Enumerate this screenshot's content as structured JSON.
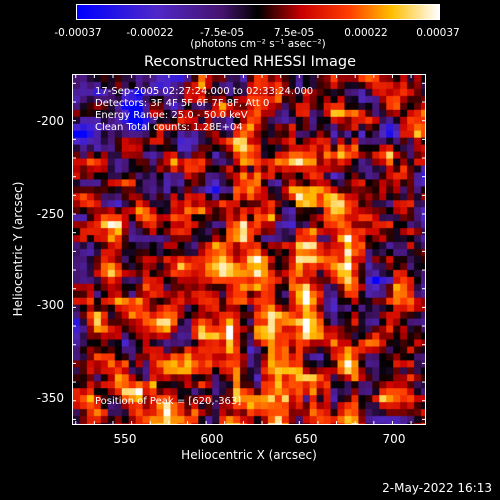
{
  "chart_data": {
    "type": "heatmap",
    "title": "Reconstructed RHESSI Image",
    "xlabel": "Heliocentric X (arcsec)",
    "ylabel": "Heliocentric Y (arcsec)",
    "xlim": [
      523,
      713
    ],
    "ylim": [
      -368,
      -180
    ],
    "x_ticks": [
      "550",
      "600",
      "650",
      "700"
    ],
    "y_ticks": [
      "-200",
      "-250",
      "-300",
      "-350"
    ],
    "colorbar": {
      "ticks": [
        "-0.00037",
        "-0.00022",
        "-7.5e-05",
        "7.5e-05",
        "0.00022",
        "0.00037"
      ],
      "units_label": "(photons cm⁻² s⁻¹ asec⁻²)",
      "range": [
        -0.00037,
        0.00037
      ]
    },
    "annotations": [
      "17-Sep-2005 02:27:24.000 to 02:33:24.000",
      "Detectors: 3F 4F 5F 6F 7F 8F, Att 0",
      "Energy Range: 25.0 - 50.0 keV",
      "Clean     Total counts: 1.28E+04"
    ],
    "peak_label": "Position of Peak = [620,-363]",
    "peak_position": [
      620,
      -363
    ],
    "grid": false
  },
  "footer": {
    "datestamp": "2-May-2022 16:13"
  }
}
